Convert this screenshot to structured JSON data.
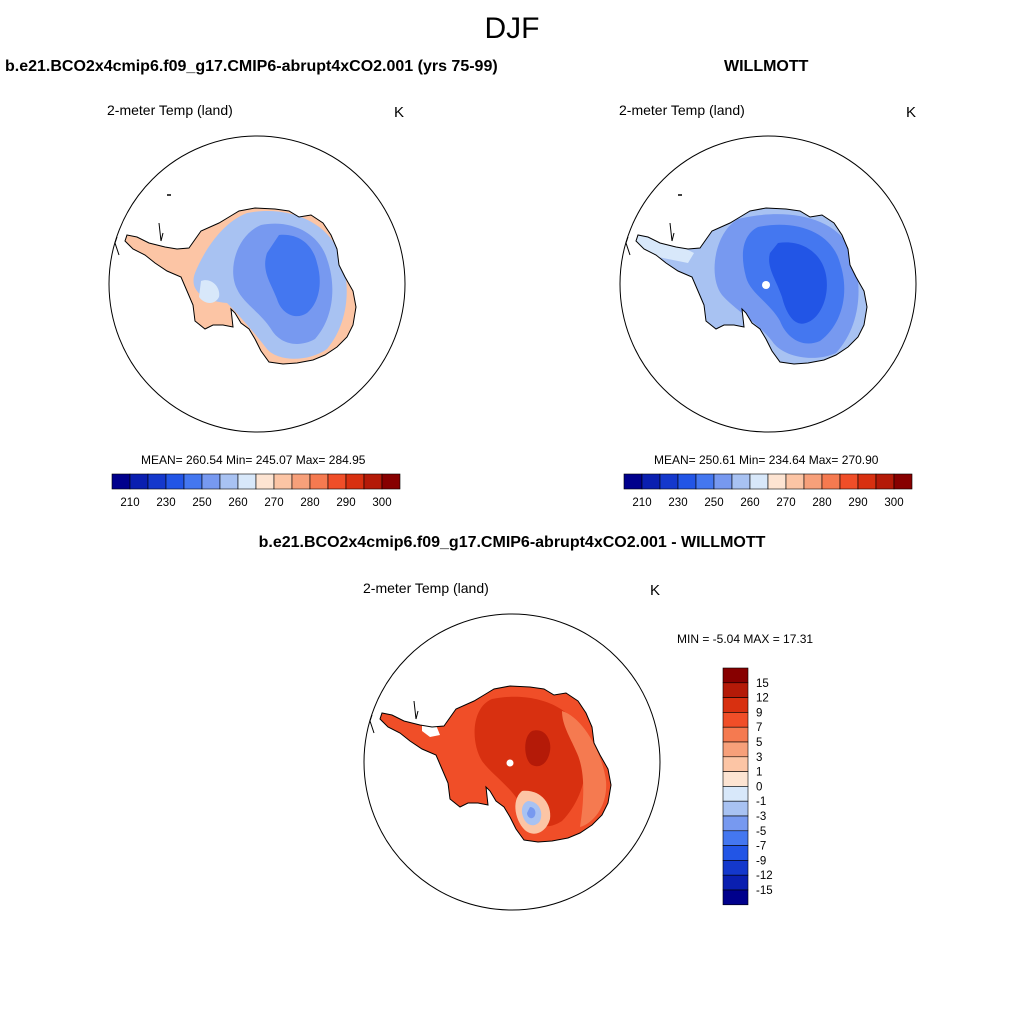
{
  "figure": {
    "title": "DJF",
    "panels": [
      {
        "id": "model",
        "title": "b.e21.BCO2x4cmip6.f09_g17.CMIP6-abrupt4xCO2.001 (yrs 75-99)",
        "variable": "2-meter Temp (land)",
        "units": "K",
        "stats": "MEAN= 260.54  Min= 245.07  Max= 284.95"
      },
      {
        "id": "obs",
        "title": "WILLMOTT",
        "variable": "2-meter Temp (land)",
        "units": "K",
        "stats": "MEAN= 250.61  Min= 234.64  Max= 270.90"
      },
      {
        "id": "diff",
        "title": "b.e21.BCO2x4cmip6.f09_g17.CMIP6-abrupt4xCO2.001 - WILLMOTT",
        "variable": "2-meter Temp (land)",
        "units": "K",
        "stats": "MIN =  -5.04 MAX =  17.31"
      }
    ]
  },
  "colorbars": {
    "absolute": {
      "colors": [
        "#00008c",
        "#0a1fb0",
        "#1438cc",
        "#2255e6",
        "#4477f0",
        "#7799f0",
        "#a8c2f2",
        "#d8e8fa",
        "#fde4d2",
        "#fcc5a5",
        "#f7a07a",
        "#f57a50",
        "#f04e28",
        "#d83010",
        "#b41a08",
        "#870000"
      ],
      "labels": [
        "210",
        "230",
        "250",
        "260",
        "270",
        "280",
        "290",
        "300"
      ]
    },
    "difference": {
      "colors": [
        "#870000",
        "#b41a08",
        "#d83010",
        "#f04e28",
        "#f57a50",
        "#f7a07a",
        "#fcc5a5",
        "#fde4d2",
        "#d8e8fa",
        "#a8c2f2",
        "#7799f0",
        "#4477f0",
        "#2255e6",
        "#1438cc",
        "#0a1fb0",
        "#00008c"
      ],
      "labels": [
        "15",
        "12",
        "9",
        "7",
        "5",
        "3",
        "1",
        "0",
        "-1",
        "-3",
        "-5",
        "-7",
        "-9",
        "-12",
        "-15"
      ]
    }
  }
}
